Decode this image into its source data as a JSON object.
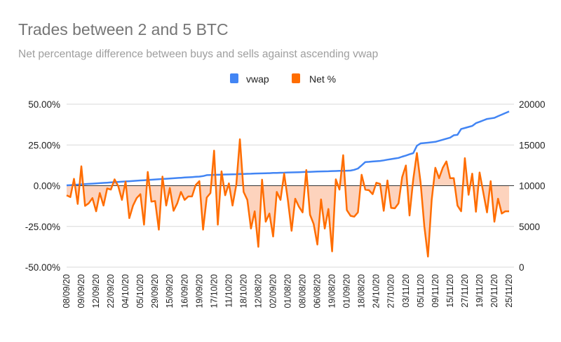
{
  "chart_data": {
    "type": "line",
    "title": "Trades between 2 and 5 BTC",
    "subtitle": "Net percentage difference between buys and sells against ascending vwap",
    "legend_position": "top",
    "grid": true,
    "left_axis": {
      "series": "Net %",
      "ylim": [
        -50,
        50
      ],
      "ticks": [
        "50.00%",
        "25.00%",
        "0.00%",
        "-25.00%",
        "-50.00%"
      ]
    },
    "right_axis": {
      "series": "vwap",
      "ylim": [
        0,
        20000
      ],
      "ticks": [
        "20000",
        "15000",
        "10000",
        "5000",
        "0"
      ]
    },
    "x_tick_labels": [
      "08/09/20",
      "09/09/20",
      "12/09/20",
      "22/09/20",
      "04/10/20",
      "05/10/20",
      "29/09/20",
      "15/09/20",
      "16/09/20",
      "19/09/20",
      "17/10/20",
      "11/10/20",
      "18/10/20",
      "12/08/20",
      "02/09/20",
      "01/08/20",
      "08/08/20",
      "06/08/20",
      "19/08/20",
      "01/09/20",
      "18/08/20",
      "24/10/20",
      "27/10/20",
      "03/11/20",
      "05/11/20",
      "09/11/20",
      "15/11/20",
      "27/11/20",
      "19/11/20",
      "20/11/20",
      "25/11/20"
    ],
    "series": [
      {
        "name": "vwap",
        "color": "#4285f4",
        "axis": "right",
        "values": [
          10040,
          10070,
          10100,
          10130,
          10160,
          10190,
          10220,
          10250,
          10280,
          10310,
          10340,
          10370,
          10400,
          10430,
          10460,
          10490,
          10520,
          10550,
          10580,
          10610,
          10640,
          10670,
          10700,
          10730,
          10760,
          10790,
          10820,
          10850,
          10880,
          10910,
          10940,
          10970,
          11000,
          11030,
          11060,
          11090,
          11120,
          11180,
          11300,
          11310,
          11330,
          11340,
          11360,
          11370,
          11380,
          11400,
          11410,
          11430,
          11440,
          11460,
          11470,
          11490,
          11500,
          11510,
          11530,
          11540,
          11560,
          11570,
          11590,
          11600,
          11620,
          11630,
          11640,
          11660,
          11670,
          11690,
          11700,
          11720,
          11730,
          11750,
          11760,
          11770,
          11790,
          11800,
          11820,
          11830,
          11840,
          11850,
          11950,
          12100,
          12500,
          12900,
          12930,
          12970,
          13000,
          13040,
          13110,
          13190,
          13260,
          13340,
          13410,
          13560,
          13700,
          13850,
          13990,
          14900,
          15190,
          15240,
          15280,
          15330,
          15380,
          15510,
          15640,
          15770,
          15900,
          16190,
          16250,
          16960,
          17080,
          17210,
          17330,
          17670,
          17840,
          18020,
          18190,
          18260,
          18330,
          18530,
          18720,
          18920,
          19110
        ]
      },
      {
        "name": "Net %",
        "color": "#ff6d00",
        "fill": "#fdd3bd",
        "axis": "left",
        "type": "area",
        "values": [
          -5.9,
          -7.0,
          4.2,
          -11.2,
          11.9,
          -12.4,
          -10.8,
          -7.6,
          -15.7,
          -4.5,
          -12.2,
          -1.7,
          -2.4,
          3.9,
          -0.3,
          -8.7,
          2.5,
          -19.9,
          -12.2,
          -7.6,
          -5.2,
          -23.9,
          8.4,
          -9.8,
          -9.4,
          -27.0,
          5.6,
          -12.2,
          -1.4,
          -15.4,
          -10.8,
          -3.8,
          -8.7,
          -6.6,
          -6.6,
          0.4,
          2.8,
          -27.0,
          -7.3,
          -4.5,
          21.5,
          -23.9,
          8.8,
          -5.9,
          1.4,
          -12.2,
          0.4,
          28.5,
          -3.8,
          -8.7,
          -26.3,
          -15.7,
          -37.5,
          3.7,
          -22.1,
          -17.1,
          -31.2,
          -3.8,
          -8.7,
          7.4,
          -8.7,
          -27.7,
          -8.0,
          -12.9,
          -16.4,
          9.6,
          -17.8,
          -23.5,
          -36.1,
          -8.4,
          -26.3,
          -14.3,
          -40.3,
          3.9,
          -2.4,
          18.7,
          -15.0,
          -18.5,
          -19.0,
          -16.4,
          6.7,
          -2.4,
          -2.8,
          -5.2,
          1.8,
          1.1,
          -15.4,
          3.2,
          -13.6,
          -13.9,
          -10.8,
          5.3,
          12.4,
          -18.3,
          3.9,
          20.1,
          1.8,
          -24.9,
          -43.5,
          -8.7,
          11.0,
          4.6,
          11.0,
          14.9,
          4.6,
          4.6,
          -12.2,
          -15.7,
          16.9,
          -5.6,
          7.4,
          -16.0,
          8.1,
          -4.2,
          -16.4,
          2.8,
          -22.1,
          -8.0,
          -17.1,
          -15.7,
          -15.7
        ]
      }
    ]
  }
}
